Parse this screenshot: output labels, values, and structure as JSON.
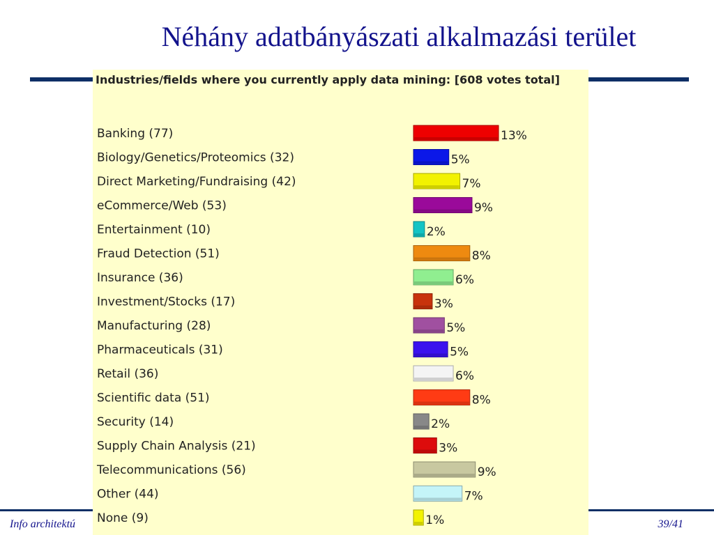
{
  "slide": {
    "title": "Néhány adatbányászati alkalmazási terület",
    "footer_left": "Info architektú",
    "footer_right": "39/41"
  },
  "chart_data": {
    "type": "bar",
    "orientation": "horizontal",
    "title": "Industries/fields where you currently apply data mining: [608 votes total]",
    "categories": [
      "Banking (77)",
      "Biology/Genetics/Proteomics (32)",
      "Direct Marketing/Fundraising (42)",
      "eCommerce/Web (53)",
      "Entertainment (10)",
      "Fraud Detection (51)",
      "Insurance (36)",
      "Investment/Stocks (17)",
      "Manufacturing (28)",
      "Pharmaceuticals (31)",
      "Retail (36)",
      "Scientific data (51)",
      "Security (14)",
      "Supply Chain Analysis (21)",
      "Telecommunications (56)",
      "Other (44)",
      "None (9)"
    ],
    "votes": [
      77,
      32,
      42,
      53,
      10,
      51,
      36,
      17,
      28,
      31,
      36,
      51,
      14,
      21,
      56,
      44,
      9
    ],
    "value_labels": [
      "13%",
      "5%",
      "7%",
      "9%",
      "2%",
      "8%",
      "6%",
      "3%",
      "5%",
      "5%",
      "6%",
      "8%",
      "2%",
      "3%",
      "9%",
      "7%",
      "1%"
    ],
    "colors": [
      "#ee0000",
      "#0b18e8",
      "#f2f200",
      "#9a0a9a",
      "#13c4c4",
      "#ee8a10",
      "#90ee90",
      "#c8330c",
      "#a050a0",
      "#3b12ee",
      "#f4f4f4",
      "#ff3b14",
      "#888888",
      "#dd0c0c",
      "#c8c8a0",
      "#c4f4f8",
      "#f2f200"
    ],
    "grid": false,
    "legend": "none"
  }
}
